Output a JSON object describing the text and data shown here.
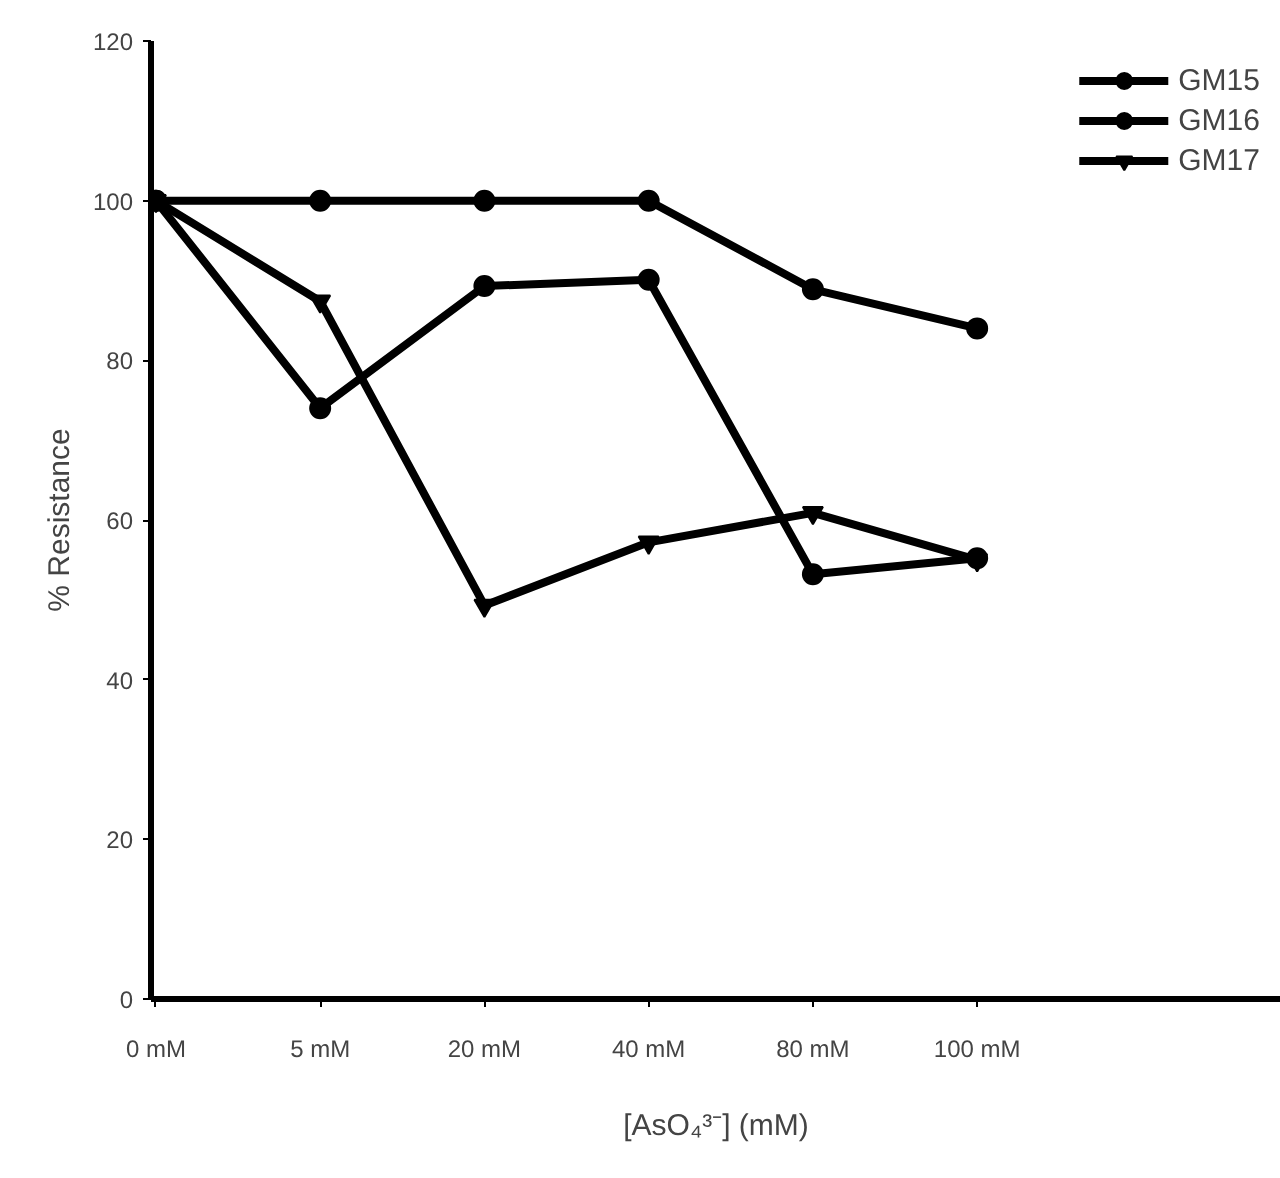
{
  "chart_data": {
    "type": "line",
    "xlabel": "[AsO₄³⁻] (mM)",
    "ylabel": "% Resistance",
    "categories": [
      "0 mM",
      "5 mM",
      "20 mM",
      "40 mM",
      "80 mM",
      "100 mM"
    ],
    "series": [
      {
        "name": "GM15",
        "color": "#000000",
        "marker": "circle",
        "values": [
          100,
          74,
          89.3,
          90.1,
          53.2,
          55.2
        ]
      },
      {
        "name": "GM16",
        "color": "#000000",
        "marker": "circle",
        "values": [
          100,
          100,
          100,
          100,
          88.9,
          84
        ]
      },
      {
        "name": "GM17",
        "color": "#000000",
        "marker": "triangle",
        "values": [
          100,
          87.4,
          49.3,
          57.2,
          60.9,
          55
        ]
      }
    ],
    "ylim": [
      0,
      120
    ],
    "yticks": [
      0,
      20,
      40,
      60,
      80,
      100,
      120
    ],
    "grid": false,
    "legend": "top right",
    "line_style": "solid"
  }
}
